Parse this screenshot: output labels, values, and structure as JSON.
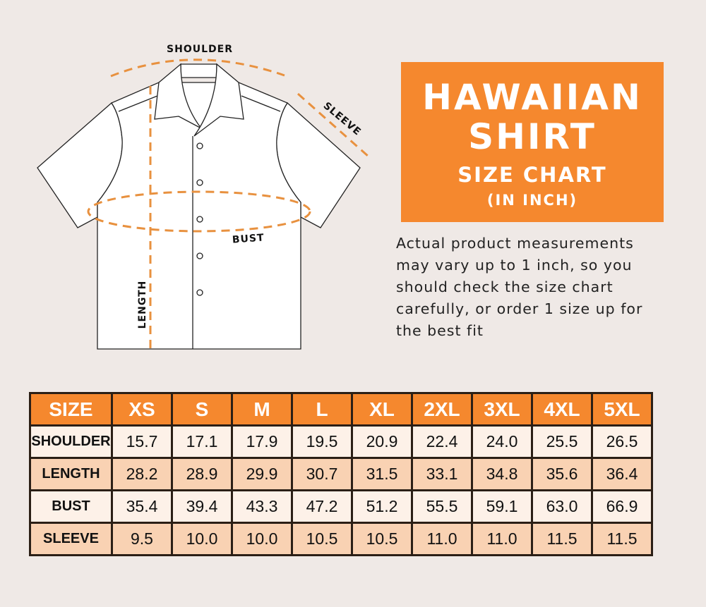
{
  "diagram": {
    "labels": {
      "shoulder": "SHOULDER",
      "sleeve": "SLEEVE",
      "bust": "BUST",
      "length": "LENGTH"
    },
    "accent_color": "#e8913f"
  },
  "title": {
    "line1": "HAWAIIAN",
    "line2": "SHIRT",
    "line3": "SIZE CHART",
    "line4": "(IN INCH)",
    "color": "#f5882e"
  },
  "note": "Actual product measurements may vary up to 1 inch, so you should check the size chart carefully, or order 1 size up for the best fit",
  "table": {
    "headers": [
      "SIZE",
      "XS",
      "S",
      "M",
      "L",
      "XL",
      "2XL",
      "3XL",
      "4XL",
      "5XL"
    ],
    "rows": [
      {
        "label": "SHOULDER",
        "values": [
          "15.7",
          "17.1",
          "17.9",
          "19.5",
          "20.9",
          "22.4",
          "24.0",
          "25.5",
          "26.5"
        ]
      },
      {
        "label": "LENGTH",
        "values": [
          "28.2",
          "28.9",
          "29.9",
          "30.7",
          "31.5",
          "33.1",
          "34.8",
          "35.6",
          "36.4"
        ]
      },
      {
        "label": "BUST",
        "values": [
          "35.4",
          "39.4",
          "43.3",
          "47.2",
          "51.2",
          "55.5",
          "59.1",
          "63.0",
          "66.9"
        ]
      },
      {
        "label": "SLEEVE",
        "values": [
          "9.5",
          "10.0",
          "10.0",
          "10.5",
          "10.5",
          "11.0",
          "11.0",
          "11.5",
          "11.5"
        ]
      }
    ]
  }
}
